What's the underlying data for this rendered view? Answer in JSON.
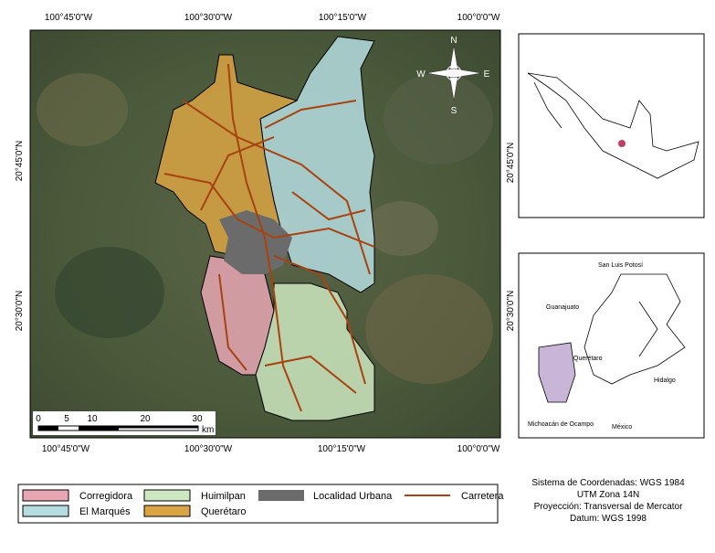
{
  "map": {
    "x_labels": [
      "100°45'0\"W",
      "100°30'0\"W",
      "100°15'0\"W",
      "100°0'0\"W"
    ],
    "y_labels": [
      "20°45'0\"N",
      "20°30'0\"N"
    ],
    "compass": {
      "n": "N",
      "w": "W",
      "e": "E",
      "s": "S"
    },
    "scale": {
      "ticks": [
        "0",
        "5",
        "10",
        "20",
        "30"
      ],
      "unit": "km"
    },
    "inset_labels": [
      "San Luis Potosí",
      "Guanajuato",
      "Querétaro",
      "Hidalgo",
      "Michoacán de Ocampo",
      "México"
    ],
    "legend": [
      "Corregidora",
      "El Marqués",
      "Huimilpan",
      "Querétaro",
      "Localidad Urbana",
      "Carretera"
    ],
    "info": [
      "Sistema de Coordenadas: WGS 1984",
      "UTM Zona 14N",
      "Proyección: Transversal de Mercator",
      "Datum: WGS 1998"
    ]
  }
}
